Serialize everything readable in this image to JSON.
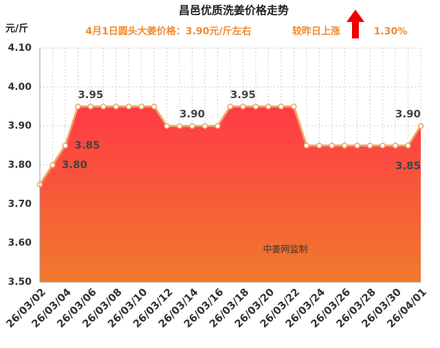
{
  "chart_data": {
    "type": "area",
    "title": "昌邑优质洗姜价格走势",
    "subtitle": "4月1日圆头大姜价格：3.90元/斤左右",
    "change_text": "较昨日上涨",
    "change_value": "1.30%",
    "y_axis_label": "元/斤",
    "watermark": "中姜网监制",
    "categories": [
      "26/03/02",
      null,
      "26/03/04",
      null,
      "26/03/06",
      null,
      "26/03/08",
      null,
      "26/03/10",
      null,
      "26/03/12",
      null,
      "26/03/14",
      null,
      "26/03/16",
      null,
      "26/03/18",
      null,
      "26/03/20",
      null,
      "26/03/22",
      null,
      "26/03/24",
      null,
      "26/03/26",
      null,
      "26/03/28",
      null,
      "26/03/30",
      null,
      "26/04/01"
    ],
    "series": [
      {
        "color": "#f0a060",
        "fill_gradient": [
          "#ff3a46",
          "#f07a2c"
        ],
        "values": [
          3.75,
          3.8,
          3.85,
          3.95,
          3.95,
          3.95,
          3.95,
          3.95,
          3.95,
          3.95,
          3.9,
          3.9,
          3.9,
          3.9,
          3.9,
          3.95,
          3.95,
          3.95,
          3.95,
          3.95,
          3.95,
          3.85,
          3.85,
          3.85,
          3.85,
          3.85,
          3.85,
          3.85,
          3.85,
          3.85,
          3.9
        ],
        "value_labels": [
          null,
          "3.80",
          "3.85",
          null,
          "3.95",
          null,
          null,
          null,
          null,
          null,
          null,
          null,
          "3.90",
          null,
          null,
          null,
          "3.95",
          null,
          null,
          null,
          null,
          null,
          null,
          null,
          null,
          null,
          null,
          null,
          null,
          "3.85",
          "3.90"
        ]
      }
    ],
    "ylim": [
      3.5,
      4.1
    ],
    "yticks": [
      {
        "value": 3.5,
        "label": "3.50"
      },
      {
        "value": 3.6,
        "label": "3.60"
      },
      {
        "value": 3.7,
        "label": "3.70"
      },
      {
        "value": 3.8,
        "label": "3.80"
      },
      {
        "value": 3.9,
        "label": "3.90"
      },
      {
        "value": 4.0,
        "label": "4.00"
      },
      {
        "value": 4.1,
        "label": "4.10"
      }
    ],
    "grid": true
  }
}
